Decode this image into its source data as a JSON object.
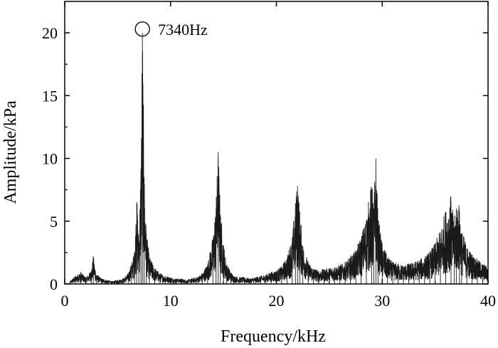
{
  "chart_data": {
    "type": "line",
    "xlabel": "Frequency/kHz",
    "ylabel": "Amplitude/kPa",
    "xlim": [
      0,
      40
    ],
    "ylim": [
      0,
      22.5
    ],
    "x_ticks": [
      0,
      10,
      20,
      30,
      40
    ],
    "y_ticks": [
      0,
      5,
      10,
      15,
      20
    ],
    "x_tick_labels": [
      "0",
      "10",
      "20",
      "30",
      "40"
    ],
    "y_tick_labels": [
      "0",
      "5",
      "10",
      "15",
      "20"
    ],
    "grid": false,
    "series": [
      {
        "color": "#1a1a1a",
        "x": [
          0.5,
          1.0,
          1.5,
          2.0,
          2.5,
          2.7,
          3.0,
          3.5,
          4.0,
          4.5,
          5.0,
          5.5,
          6.0,
          6.3,
          6.6,
          6.8,
          7.0,
          7.2,
          7.34,
          7.5,
          7.7,
          8.0,
          8.5,
          9.0,
          9.5,
          10.0,
          10.5,
          11.0,
          11.5,
          12.0,
          12.5,
          13.0,
          13.5,
          14.0,
          14.3,
          14.5,
          14.7,
          15.0,
          15.3,
          15.7,
          16.0,
          16.5,
          17.0,
          17.5,
          18.0,
          18.5,
          19.0,
          19.5,
          20.0,
          20.5,
          21.0,
          21.5,
          21.8,
          22.0,
          22.2,
          22.5,
          23.0,
          23.5,
          24.0,
          24.5,
          25.0,
          25.5,
          26.0,
          26.5,
          27.0,
          27.5,
          28.0,
          28.5,
          29.0,
          29.2,
          29.4,
          29.6,
          30.0,
          30.5,
          31.0,
          31.5,
          32.0,
          32.5,
          33.0,
          33.5,
          34.0,
          34.5,
          35.0,
          35.5,
          36.0,
          36.5,
          36.8,
          37.0,
          37.3,
          37.5,
          38.0,
          38.5,
          39.0,
          39.5,
          40.0
        ],
        "y": [
          0.2,
          0.6,
          0.9,
          0.5,
          1.0,
          2.1,
          0.7,
          0.4,
          0.3,
          0.2,
          0.3,
          0.4,
          0.8,
          1.5,
          2.5,
          6.5,
          3.5,
          9.0,
          20.0,
          8.5,
          4.0,
          2.0,
          1.2,
          0.8,
          0.6,
          0.5,
          0.4,
          0.4,
          0.3,
          0.4,
          0.5,
          0.8,
          1.5,
          3.5,
          6.0,
          10.2,
          5.5,
          3.0,
          1.5,
          0.9,
          0.6,
          0.5,
          0.5,
          0.4,
          0.5,
          0.6,
          0.7,
          0.9,
          1.0,
          1.3,
          2.0,
          3.5,
          6.0,
          7.8,
          5.5,
          3.0,
          1.6,
          1.2,
          1.0,
          1.1,
          1.2,
          1.3,
          1.4,
          1.6,
          2.0,
          2.5,
          3.5,
          5.0,
          7.5,
          6.0,
          9.7,
          5.0,
          3.0,
          2.0,
          1.6,
          1.5,
          1.4,
          1.5,
          1.6,
          1.8,
          2.0,
          2.4,
          3.0,
          4.0,
          5.5,
          6.5,
          4.5,
          6.0,
          5.8,
          4.0,
          2.8,
          2.2,
          1.8,
          1.5,
          1.3
        ]
      }
    ],
    "annotations": [
      {
        "x": 7.34,
        "y": 20.3,
        "text": "7340Hz"
      }
    ]
  }
}
